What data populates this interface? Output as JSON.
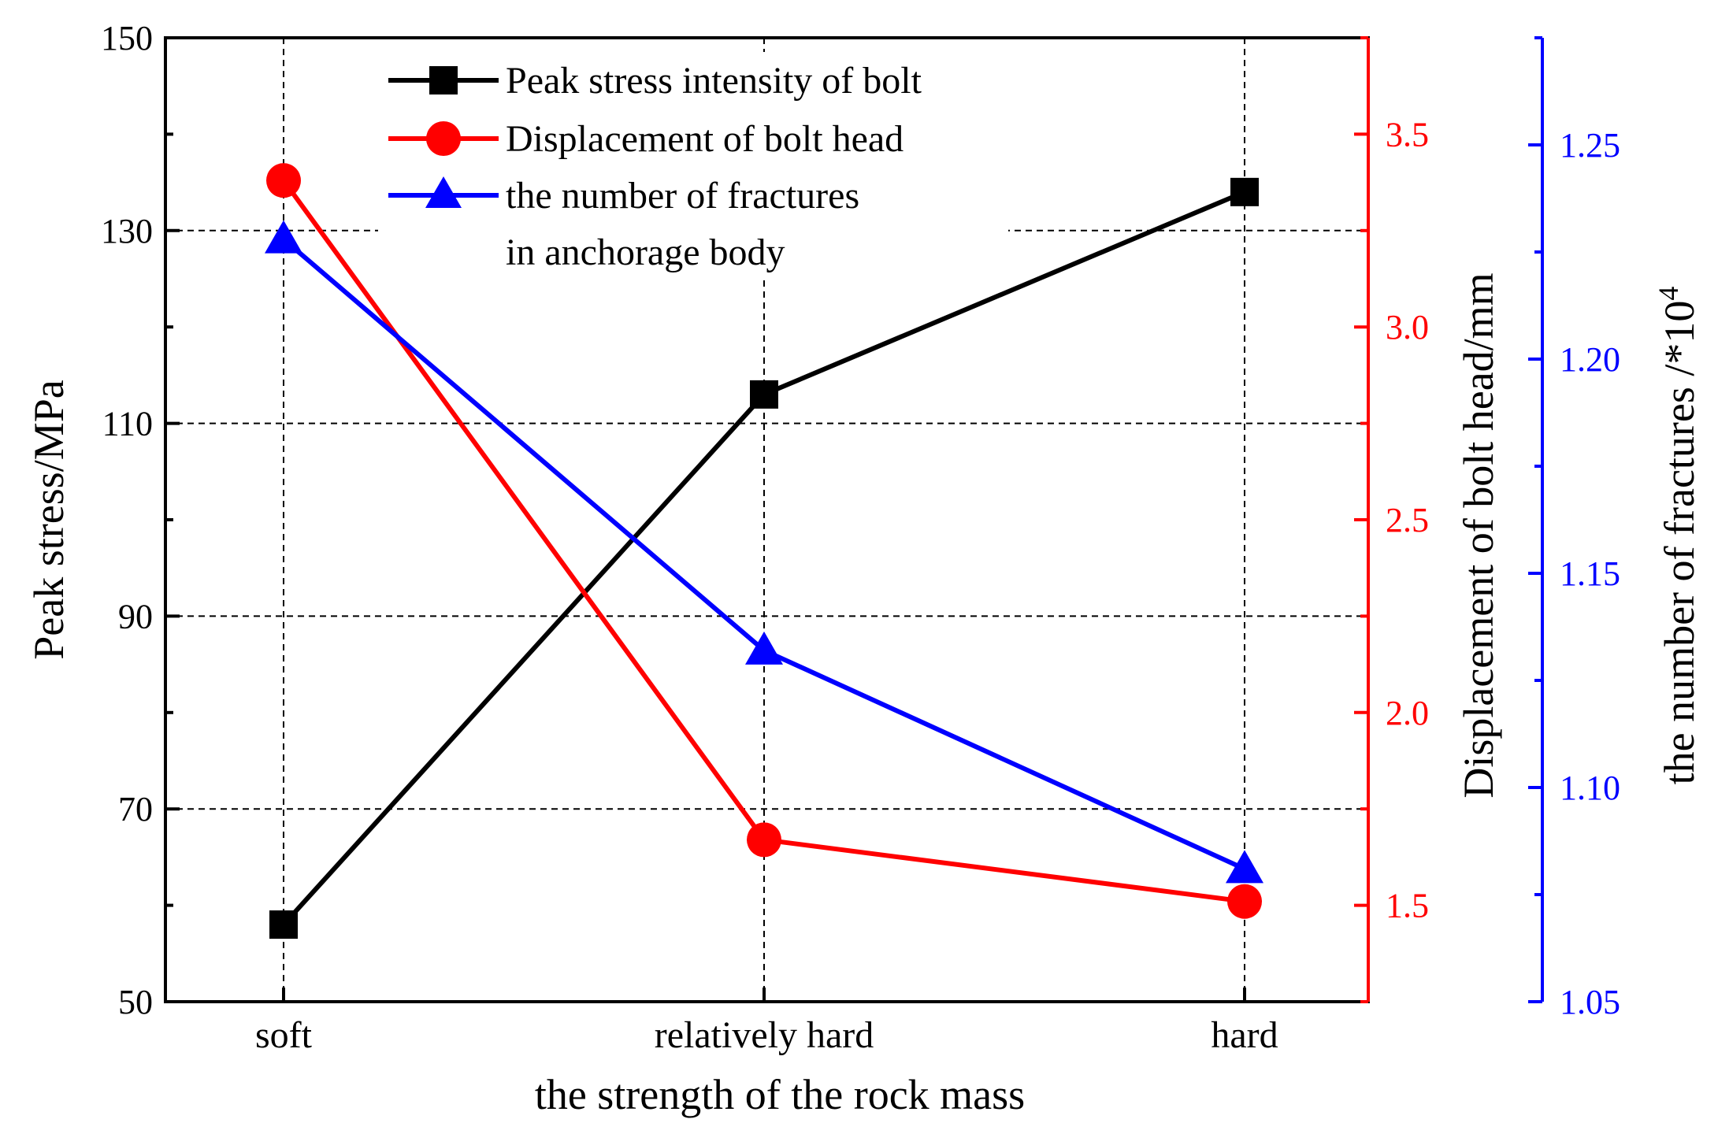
{
  "colors": {
    "stress": "#000000",
    "displacement": "#ff0000",
    "fractures": "#0000ff",
    "grid": "#000000"
  },
  "chart_data": {
    "type": "line",
    "title": "",
    "categories": [
      "soft",
      "relatively hard",
      "hard"
    ],
    "xlabel": "the strength of the rock mass",
    "axes": {
      "left": {
        "label": "Peak stress/MPa",
        "ylim": [
          50,
          150
        ],
        "ticks": [
          50,
          70,
          90,
          110,
          130,
          150
        ],
        "tick_labels": [
          "50",
          "70",
          "90",
          "110",
          "130",
          "150"
        ],
        "minor_step": 10,
        "color_key": "stress"
      },
      "right1": {
        "label": "Displacement of bolt head/mm",
        "ylim": [
          1.25,
          3.75
        ],
        "ticks": [
          1.5,
          2.0,
          2.5,
          3.0,
          3.5
        ],
        "tick_labels": [
          "1.5",
          "2.0",
          "2.5",
          "3.0",
          "3.5"
        ],
        "minor_step": 0.25,
        "color_key": "displacement"
      },
      "right2": {
        "label_main": "the number of fractures /*10",
        "label_sup": "4",
        "ylim": [
          1.05,
          1.275
        ],
        "ticks": [
          1.05,
          1.1,
          1.15,
          1.2,
          1.25
        ],
        "tick_labels": [
          "1.05",
          "1.10",
          "1.15",
          "1.20",
          "1.25"
        ],
        "minor_step": 0.025,
        "color_key": "fractures"
      }
    },
    "series": [
      {
        "name": "Peak stress intensity of bolt",
        "axis": "left",
        "marker": "square",
        "color_key": "stress",
        "values": [
          58,
          113,
          134
        ]
      },
      {
        "name": "Displacement of bolt head",
        "axis": "right1",
        "marker": "circle",
        "color_key": "displacement",
        "values": [
          3.38,
          1.67,
          1.51
        ]
      },
      {
        "name": "the number of fractures",
        "name_line2": "in anchorage body",
        "axis": "right2",
        "marker": "triangle",
        "color_key": "fractures",
        "values": [
          1.228,
          1.132,
          1.081
        ]
      }
    ],
    "grid": true,
    "legend_position": "top-center"
  }
}
